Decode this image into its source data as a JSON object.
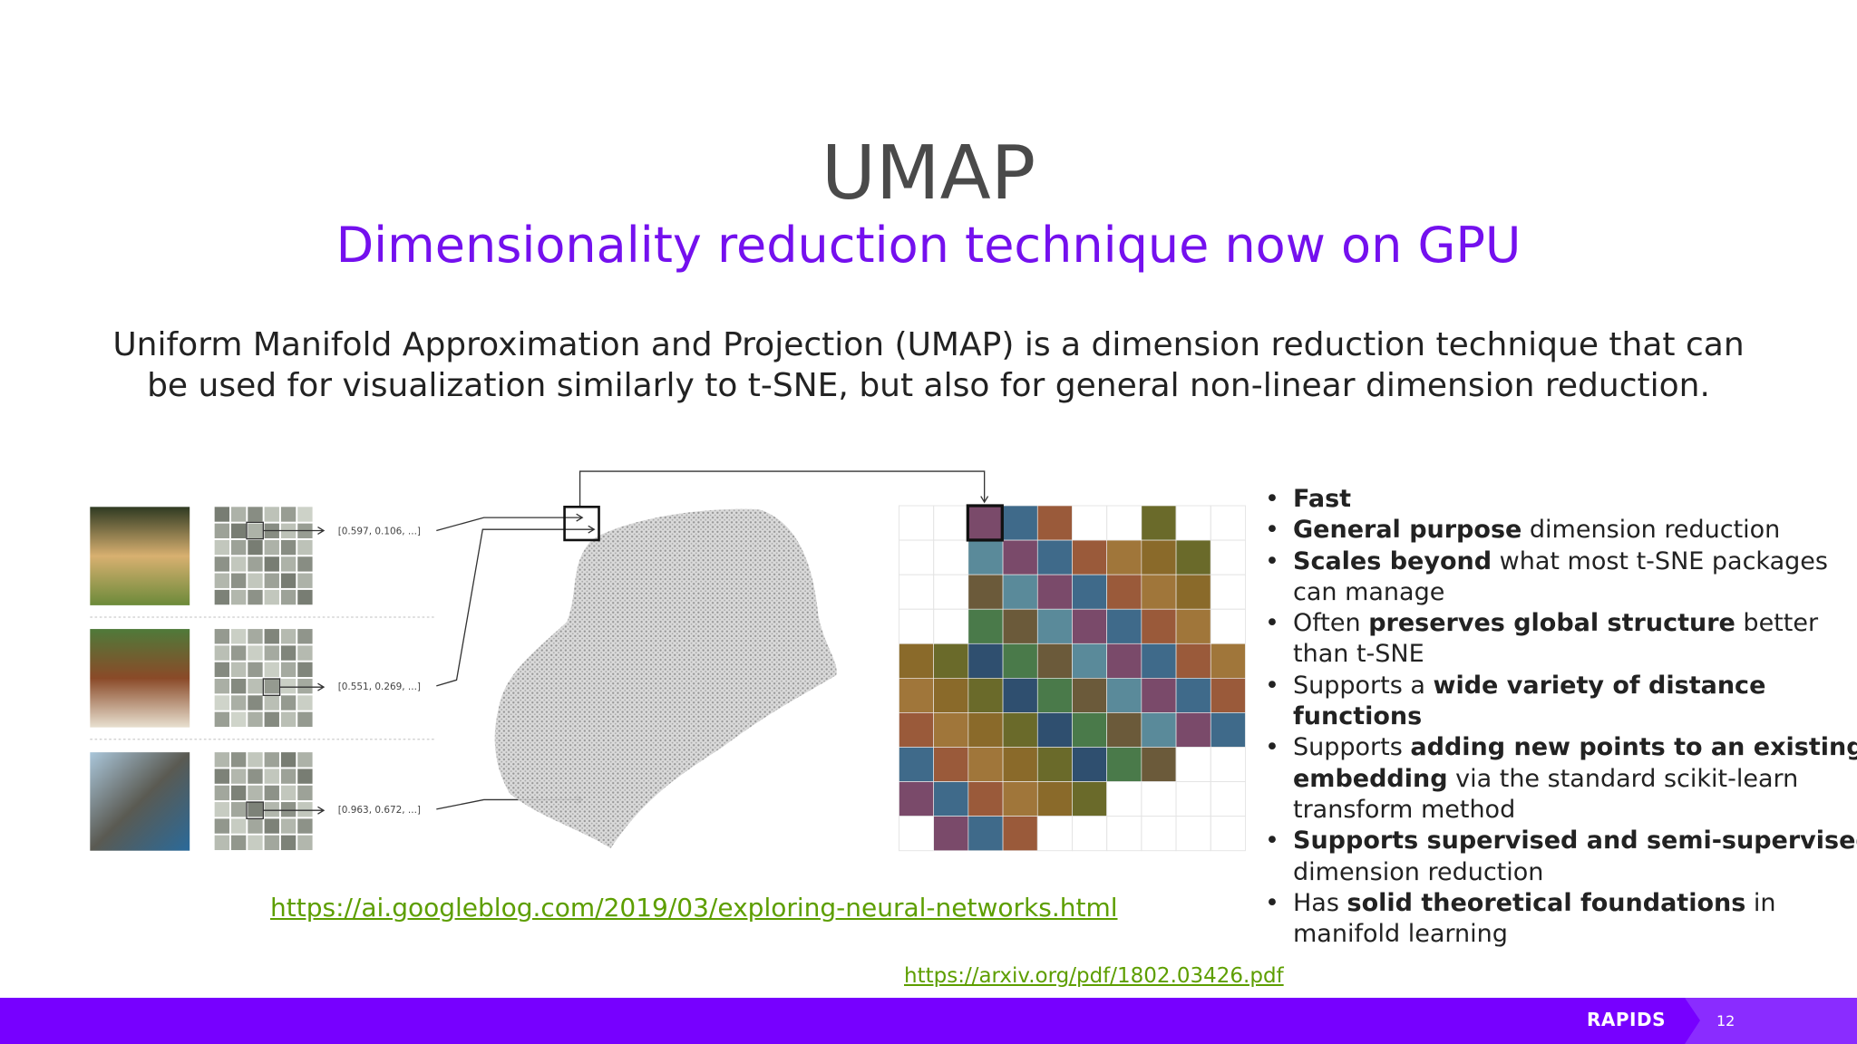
{
  "title": "UMAP",
  "subtitle": "Dimensionality reduction technique now on GPU",
  "intro": "Uniform Manifold Approximation and Projection (UMAP) is a dimension reduction technique that can be used for visualization similarly to t-SNE, but also for general non-linear dimension reduction.",
  "figure": {
    "vector_labels": [
      "[0.597, 0.106, ...]",
      "[0.551, 0.269, ...]",
      "[0.963, 0.672, ...]"
    ]
  },
  "bullets": [
    [
      {
        "text": "Fast",
        "bold": true
      }
    ],
    [
      {
        "text": "General purpose",
        "bold": true
      },
      {
        "text": " dimension reduction",
        "bold": false
      }
    ],
    [
      {
        "text": "Scales beyond",
        "bold": true
      },
      {
        "text": " what most t-SNE packages can manage",
        "bold": false
      }
    ],
    [
      {
        "text": "Often ",
        "bold": false
      },
      {
        "text": "preserves global structure",
        "bold": true
      },
      {
        "text": " better than t-SNE",
        "bold": false
      }
    ],
    [
      {
        "text": "Supports a ",
        "bold": false
      },
      {
        "text": "wide variety of distance functions",
        "bold": true
      }
    ],
    [
      {
        "text": "Supports ",
        "bold": false
      },
      {
        "text": "adding new points to an existing embedding",
        "bold": true
      },
      {
        "text": " via the standard scikit-learn transform method",
        "bold": false
      }
    ],
    [
      {
        "text": "Supports supervised and semi-supervised",
        "bold": true
      },
      {
        "text": " dimension reduction",
        "bold": false
      }
    ],
    [
      {
        "text": "Has ",
        "bold": false
      },
      {
        "text": "solid theoretical foundations",
        "bold": true
      },
      {
        "text": " in manifold learning",
        "bold": false
      }
    ]
  ],
  "links": [
    "https://ai.googleblog.com/2019/03/exploring-neural-networks.html",
    "https://arxiv.org/pdf/1802.03426.pdf"
  ],
  "footer": {
    "logo": "RAPIDS",
    "page": "12"
  }
}
